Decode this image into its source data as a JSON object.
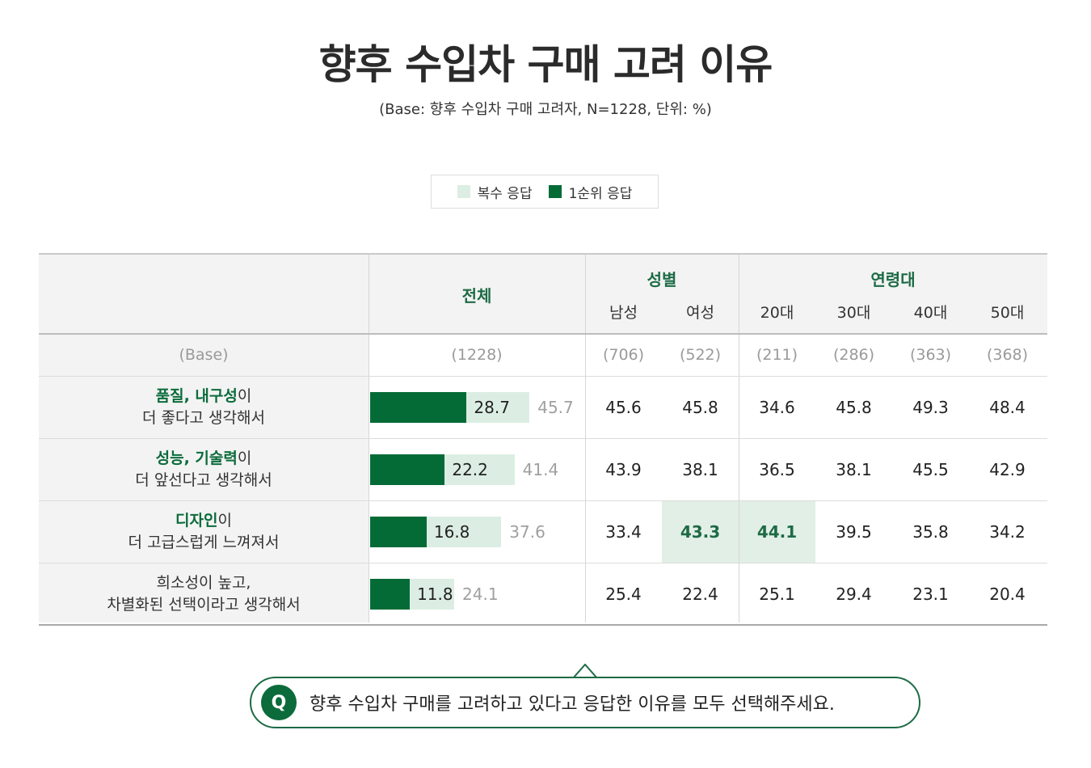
{
  "title": "향후 수입차 구매 고려 이유",
  "subtitle": "(Base: 향후 수입차 구매 고려자, N=1228, 단위: %)",
  "legend": {
    "multi": {
      "label": "복수 응답",
      "color": "#dceee3"
    },
    "first": {
      "label": "1순위 응답",
      "color": "#046b37"
    }
  },
  "header": {
    "total": "전체",
    "gender_group": "성별",
    "age_group": "연령대",
    "sub": [
      "남성",
      "여성",
      "20대",
      "30대",
      "40대",
      "50대"
    ]
  },
  "base": {
    "label": "(Base)",
    "total": "(1228)",
    "values": [
      "(706)",
      "(522)",
      "(211)",
      "(286)",
      "(363)",
      "(368)"
    ]
  },
  "rows": [
    {
      "label_em": "품질, 내구성",
      "label_rest": "이",
      "label_line2": "더 좋다고 생각해서",
      "first": "28.7",
      "multi": "45.7",
      "values": [
        "45.6",
        "45.8",
        "34.6",
        "45.8",
        "49.3",
        "48.4"
      ]
    },
    {
      "label_em": "성능, 기술력",
      "label_rest": "이",
      "label_line2": "더 앞선다고 생각해서",
      "first": "22.2",
      "multi": "41.4",
      "values": [
        "43.9",
        "38.1",
        "36.5",
        "38.1",
        "45.5",
        "42.9"
      ]
    },
    {
      "label_em": "디자인",
      "label_rest": "이",
      "label_line2": "더 고급스럽게 느껴져서",
      "first": "16.8",
      "multi": "37.6",
      "values": [
        "33.4",
        "43.3",
        "44.1",
        "39.5",
        "35.8",
        "34.2"
      ]
    },
    {
      "label_em": "",
      "label_rest": "희소성이 높고,",
      "label_line2": "차별화된 선택이라고 생각해서",
      "first": "11.8",
      "multi": "24.1",
      "values": [
        "25.4",
        "22.4",
        "25.1",
        "29.4",
        "23.1",
        "20.4"
      ]
    }
  ],
  "highlights": [
    {
      "row": 2,
      "col": 1
    },
    {
      "row": 2,
      "col": 2
    }
  ],
  "chart_data": {
    "type": "bar",
    "title": "향후 수입차 구매 고려 이유",
    "subtitle": "(Base: 향후 수입차 구매 고려자, N=1228, 단위: %)",
    "categories": [
      "품질, 내구성이 더 좋다고 생각해서",
      "성능, 기술력이 더 앞선다고 생각해서",
      "디자인이 더 고급스럽게 느껴져서",
      "희소성이 높고, 차별화된 선택이라고 생각해서"
    ],
    "series": [
      {
        "name": "1순위 응답",
        "values": [
          28.7,
          22.2,
          16.8,
          11.8
        ]
      },
      {
        "name": "복수 응답",
        "values": [
          45.7,
          41.4,
          37.6,
          24.1
        ]
      }
    ],
    "orientation": "horizontal",
    "xlim": [
      0,
      100
    ],
    "legend": "top-center"
  },
  "question": {
    "badge": "Q",
    "text": "향후  수입차 구매를 고려하고 있다고 응답한 이유를 모두 선택해주세요."
  }
}
